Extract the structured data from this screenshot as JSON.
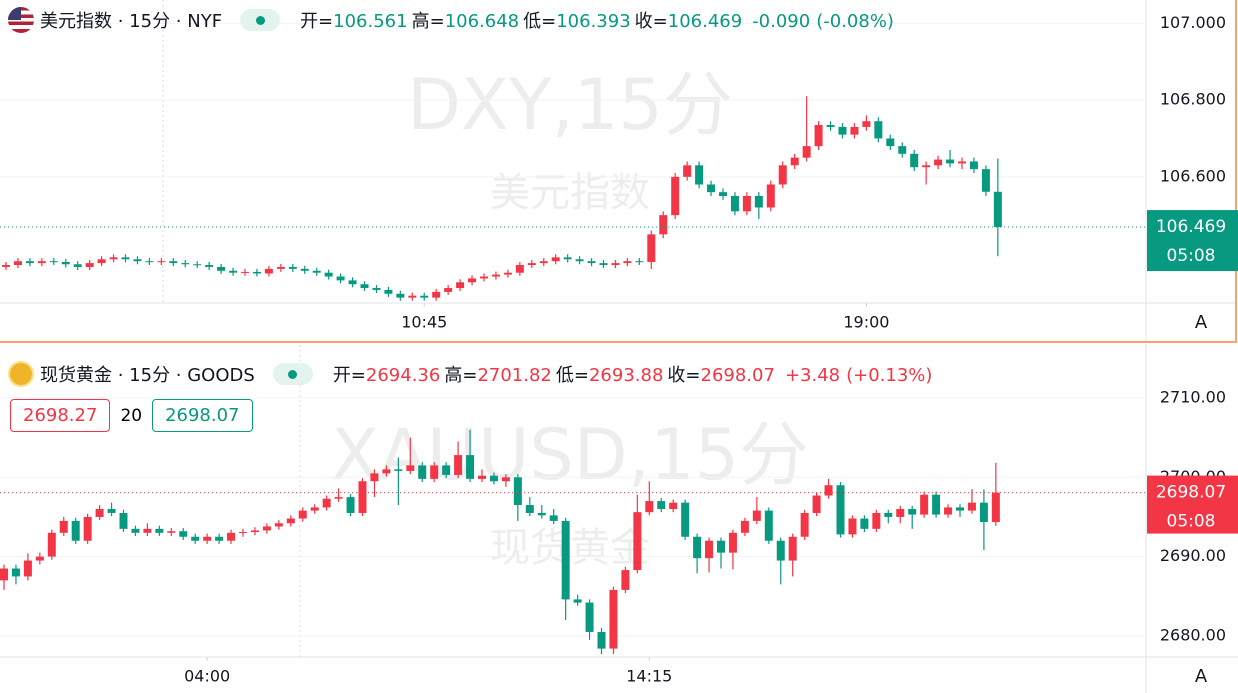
{
  "chart_data": [
    {
      "type": "candlestick",
      "title": "美元指数 · 15分 · NYF",
      "icon": "us",
      "stats": [
        {
          "label": "开=",
          "value": 106.561
        },
        {
          "label": "高=",
          "value": 106.648
        },
        {
          "label": "低=",
          "value": 106.393
        },
        {
          "label": "收=",
          "value": 106.469
        }
      ],
      "change": {
        "value": -0.09,
        "label": "-0.090"
      },
      "change_pct": {
        "value": -0.08,
        "label": "(-0.08%)"
      },
      "watermark": [
        "DXY,15分",
        "美元指数"
      ],
      "up_color": "#f23645",
      "down_color": "#089981",
      "ylim": [
        106.271,
        107.061
      ],
      "yticks": [
        {
          "value": 107,
          "label": "107.000"
        },
        {
          "value": 106.8,
          "label": "106.800"
        },
        {
          "value": 106.6,
          "label": "106.600"
        }
      ],
      "xticks": [
        {
          "value": 35,
          "label": "10:45"
        },
        {
          "value": 72,
          "label": "19:00"
        }
      ],
      "grid": true,
      "countdown": "05:08",
      "scale_button": "A",
      "candles": [
        [
          106.365,
          106.378,
          106.357,
          106.37
        ],
        [
          106.37,
          106.388,
          106.362,
          106.38
        ],
        [
          106.38,
          106.388,
          106.367,
          106.375
        ],
        [
          106.375,
          106.388,
          106.367,
          106.38
        ],
        [
          106.38,
          106.388,
          106.37,
          106.378
        ],
        [
          106.378,
          106.386,
          106.364,
          106.372
        ],
        [
          106.372,
          106.38,
          106.357,
          106.365
        ],
        [
          106.365,
          106.383,
          106.357,
          106.375
        ],
        [
          106.375,
          106.393,
          106.367,
          106.385
        ],
        [
          106.385,
          106.398,
          106.377,
          106.39
        ],
        [
          106.39,
          106.398,
          106.377,
          106.385
        ],
        [
          106.385,
          106.393,
          106.372,
          106.38
        ],
        [
          106.38,
          106.388,
          106.37,
          106.378
        ],
        [
          106.378,
          106.388,
          106.37,
          106.38
        ],
        [
          106.38,
          106.388,
          106.367,
          106.375
        ],
        [
          106.375,
          106.383,
          106.364,
          106.372
        ],
        [
          106.372,
          106.38,
          106.362,
          106.37
        ],
        [
          106.37,
          106.378,
          106.357,
          106.365
        ],
        [
          106.365,
          106.373,
          106.347,
          106.355
        ],
        [
          106.355,
          106.363,
          106.342,
          106.35
        ],
        [
          106.35,
          106.36,
          106.342,
          106.352
        ],
        [
          106.352,
          106.36,
          106.34,
          106.348
        ],
        [
          106.348,
          106.368,
          106.34,
          106.36
        ],
        [
          106.36,
          106.373,
          106.352,
          106.365
        ],
        [
          106.365,
          106.373,
          106.352,
          106.36
        ],
        [
          106.36,
          106.368,
          106.347,
          106.355
        ],
        [
          106.355,
          106.363,
          106.342,
          106.35
        ],
        [
          106.35,
          106.358,
          106.332,
          106.34
        ],
        [
          106.34,
          106.348,
          106.322,
          106.33
        ],
        [
          106.33,
          106.338,
          106.312,
          106.32
        ],
        [
          106.32,
          106.328,
          106.302,
          106.31
        ],
        [
          106.31,
          106.318,
          106.297,
          106.305
        ],
        [
          106.305,
          106.313,
          106.287,
          106.295
        ],
        [
          106.295,
          106.303,
          106.277,
          106.285
        ],
        [
          106.285,
          106.298,
          106.277,
          106.29
        ],
        [
          106.29,
          106.298,
          106.277,
          106.285
        ],
        [
          106.285,
          106.308,
          106.277,
          106.3
        ],
        [
          106.3,
          106.318,
          106.292,
          106.31
        ],
        [
          106.31,
          106.333,
          106.302,
          106.325
        ],
        [
          106.325,
          106.343,
          106.317,
          106.335
        ],
        [
          106.335,
          106.348,
          106.327,
          106.34
        ],
        [
          106.34,
          106.353,
          106.332,
          106.345
        ],
        [
          106.345,
          106.358,
          106.337,
          106.35
        ],
        [
          106.35,
          106.378,
          106.342,
          106.37
        ],
        [
          106.37,
          106.383,
          106.362,
          106.375
        ],
        [
          106.375,
          106.388,
          106.367,
          106.38
        ],
        [
          106.38,
          106.398,
          106.372,
          106.39
        ],
        [
          106.39,
          106.398,
          106.377,
          106.385
        ],
        [
          106.385,
          106.393,
          106.372,
          106.38
        ],
        [
          106.38,
          106.388,
          106.367,
          106.375
        ],
        [
          106.375,
          106.383,
          106.362,
          106.37
        ],
        [
          106.37,
          106.383,
          106.362,
          106.375
        ],
        [
          106.375,
          106.388,
          106.367,
          106.38
        ],
        [
          106.38,
          106.388,
          106.37,
          106.378
        ],
        [
          106.378,
          106.46,
          106.36,
          106.45
        ],
        [
          106.45,
          106.51,
          106.44,
          106.5
        ],
        [
          106.5,
          106.61,
          106.49,
          106.6
        ],
        [
          106.6,
          106.64,
          106.59,
          106.63
        ],
        [
          106.63,
          106.64,
          106.57,
          106.58
        ],
        [
          106.58,
          106.59,
          106.55,
          106.56
        ],
        [
          106.56,
          106.57,
          106.54,
          106.55
        ],
        [
          106.55,
          106.56,
          106.5,
          106.51
        ],
        [
          106.51,
          106.56,
          106.5,
          106.55
        ],
        [
          106.55,
          106.56,
          106.49,
          106.52
        ],
        [
          106.52,
          106.59,
          106.51,
          106.58
        ],
        [
          106.58,
          106.64,
          106.57,
          106.63
        ],
        [
          106.63,
          106.66,
          106.62,
          106.65
        ],
        [
          106.65,
          106.81,
          106.64,
          106.68
        ],
        [
          106.68,
          106.745,
          106.67,
          106.735
        ],
        [
          106.735,
          106.745,
          106.72,
          106.73
        ],
        [
          106.73,
          106.74,
          106.7,
          106.71
        ],
        [
          106.71,
          106.74,
          106.7,
          106.73
        ],
        [
          106.73,
          106.76,
          106.72,
          106.745
        ],
        [
          106.745,
          106.755,
          106.69,
          106.7
        ],
        [
          106.7,
          106.71,
          106.67,
          106.68
        ],
        [
          106.68,
          106.69,
          106.65,
          106.66
        ],
        [
          106.66,
          106.67,
          106.615,
          106.625
        ],
        [
          106.625,
          106.64,
          106.58,
          106.63
        ],
        [
          106.63,
          106.655,
          106.62,
          106.645
        ],
        [
          106.645,
          106.67,
          106.625,
          106.635
        ],
        [
          106.635,
          106.65,
          106.62,
          106.64
        ],
        [
          106.64,
          106.65,
          106.61,
          106.62
        ],
        [
          106.62,
          106.63,
          106.55,
          106.561
        ],
        [
          106.561,
          106.648,
          106.393,
          106.469
        ]
      ]
    },
    {
      "type": "candlestick",
      "title": "现货黄金 · 15分 · GOODS",
      "icon": "gold",
      "stats": [
        {
          "label": "开=",
          "value": 2694.36
        },
        {
          "label": "高=",
          "value": 2701.82
        },
        {
          "label": "低=",
          "value": 2693.88
        },
        {
          "label": "收=",
          "value": 2698.07
        }
      ],
      "change": {
        "value": 3.48,
        "label": "+3.48"
      },
      "change_pct": {
        "value": 0.13,
        "label": "(+0.13%)"
      },
      "watermark": [
        "XAUUSD,15分",
        "现货黄金"
      ],
      "quote": {
        "sell": 2698.27,
        "spread": 20,
        "buy": 2698.07
      },
      "up_color": "#f23645",
      "down_color": "#089981",
      "ylim": [
        2677.34,
        2716.68
      ],
      "yticks": [
        {
          "value": 2710,
          "label": "2710.00"
        },
        {
          "value": 2700,
          "label": "2700.00"
        },
        {
          "value": 2690,
          "label": "2690.00"
        },
        {
          "value": 2680,
          "label": "2680.00"
        }
      ],
      "xticks": [
        {
          "value": 17,
          "label": "04:00"
        },
        {
          "value": 54,
          "label": "14:15"
        }
      ],
      "grid": true,
      "countdown": "05:08",
      "scale_button": "A",
      "candles": [
        [
          2687,
          2689,
          2685.8,
          2688.5
        ],
        [
          2688.5,
          2689,
          2686.5,
          2687.5
        ],
        [
          2687.5,
          2690.4,
          2687,
          2689.5
        ],
        [
          2689.5,
          2690.5,
          2689,
          2690
        ],
        [
          2690,
          2693.4,
          2689.6,
          2693
        ],
        [
          2693,
          2695,
          2692.6,
          2694.5
        ],
        [
          2694.5,
          2694.9,
          2691.6,
          2692
        ],
        [
          2692,
          2695.4,
          2691.6,
          2695
        ],
        [
          2695,
          2696.5,
          2694.6,
          2696
        ],
        [
          2696,
          2696.8,
          2695.1,
          2695.5
        ],
        [
          2695.5,
          2695.9,
          2693.1,
          2693.5
        ],
        [
          2693.5,
          2693.9,
          2692.6,
          2693
        ],
        [
          2693,
          2694.2,
          2692.6,
          2693.5
        ],
        [
          2693.5,
          2693.9,
          2692.6,
          2693
        ],
        [
          2693,
          2693.6,
          2692.6,
          2693.2
        ],
        [
          2693.2,
          2693.6,
          2692.1,
          2692.5
        ],
        [
          2692.5,
          2692.9,
          2691.6,
          2692
        ],
        [
          2692,
          2692.9,
          2691.6,
          2692.5
        ],
        [
          2692.5,
          2692.9,
          2691.6,
          2692
        ],
        [
          2692,
          2693.4,
          2691.6,
          2693
        ],
        [
          2693,
          2693.5,
          2692.5,
          2693.1
        ],
        [
          2693.1,
          2693.7,
          2692.7,
          2693.3
        ],
        [
          2693.3,
          2694.2,
          2692.9,
          2693.8
        ],
        [
          2693.8,
          2694.6,
          2693.4,
          2694.2
        ],
        [
          2694.2,
          2695.2,
          2693.8,
          2694.8
        ],
        [
          2694.8,
          2696.2,
          2694.4,
          2695.8
        ],
        [
          2695.8,
          2696.6,
          2695.4,
          2696.2
        ],
        [
          2696.2,
          2697.7,
          2695.8,
          2697.3
        ],
        [
          2697.3,
          2698.6,
          2696.9,
          2697.5
        ],
        [
          2697.5,
          2697.9,
          2695.1,
          2695.5
        ],
        [
          2695.5,
          2699.9,
          2695.1,
          2699.5
        ],
        [
          2699.5,
          2701,
          2697.5,
          2700.5
        ],
        [
          2700.5,
          2701.5,
          2700.1,
          2701
        ],
        [
          2701,
          2702.5,
          2696.5,
          2700.8
        ],
        [
          2700.8,
          2705,
          2700.4,
          2701.5
        ],
        [
          2701.5,
          2701.9,
          2699.4,
          2699.8
        ],
        [
          2699.8,
          2701.9,
          2699.4,
          2701.5
        ],
        [
          2701.5,
          2701.9,
          2699.9,
          2700.3
        ],
        [
          2700.3,
          2704.5,
          2699.9,
          2702.8
        ],
        [
          2702.8,
          2706,
          2699.4,
          2699.8
        ],
        [
          2699.8,
          2701,
          2699.4,
          2700.2
        ],
        [
          2700.2,
          2700.6,
          2699.1,
          2699.5
        ],
        [
          2699.5,
          2700.4,
          2698.8,
          2700
        ],
        [
          2700,
          2700.4,
          2694.5,
          2696.5
        ],
        [
          2696.5,
          2697.5,
          2695.1,
          2695.5
        ],
        [
          2695.5,
          2696.5,
          2694.8,
          2695.2
        ],
        [
          2695.2,
          2696,
          2694.1,
          2694.5
        ],
        [
          2694.5,
          2694.9,
          2682,
          2684.6
        ],
        [
          2684.6,
          2685.2,
          2683.8,
          2684.2
        ],
        [
          2684.2,
          2684.6,
          2679.5,
          2680.5
        ],
        [
          2680.5,
          2681,
          2677.7,
          2678.4
        ],
        [
          2678.4,
          2686.2,
          2677.7,
          2685.8
        ],
        [
          2685.8,
          2688.7,
          2685.4,
          2688.3
        ],
        [
          2688.3,
          2697.8,
          2687.9,
          2695.6
        ],
        [
          2695.6,
          2699.5,
          2695.2,
          2697
        ],
        [
          2697,
          2697.4,
          2695.6,
          2696
        ],
        [
          2696,
          2697.2,
          2695.6,
          2696.8
        ],
        [
          2696.8,
          2697.2,
          2692.1,
          2692.5
        ],
        [
          2692.5,
          2692.9,
          2687.9,
          2689.8
        ],
        [
          2689.8,
          2692.4,
          2688,
          2692
        ],
        [
          2692,
          2692.4,
          2688.5,
          2690.5
        ],
        [
          2690.5,
          2693.4,
          2688.4,
          2693
        ],
        [
          2693,
          2694.9,
          2692.6,
          2694.5
        ],
        [
          2694.5,
          2697.5,
          2694.1,
          2695.8
        ],
        [
          2695.8,
          2696.2,
          2691.6,
          2692
        ],
        [
          2692,
          2692.4,
          2686.5,
          2689.5
        ],
        [
          2689.5,
          2692.9,
          2687.5,
          2692.5
        ],
        [
          2692.5,
          2695.9,
          2692.1,
          2695.5
        ],
        [
          2695.5,
          2698.1,
          2695.1,
          2697.7
        ],
        [
          2697.7,
          2699.8,
          2697.3,
          2699
        ],
        [
          2699,
          2699.4,
          2692.4,
          2692.8
        ],
        [
          2692.8,
          2695.2,
          2692.4,
          2694.8
        ],
        [
          2694.8,
          2695.2,
          2693.1,
          2693.5
        ],
        [
          2693.5,
          2695.9,
          2693.1,
          2695.5
        ],
        [
          2695.5,
          2695.9,
          2694.2,
          2695
        ],
        [
          2695,
          2696.4,
          2694.2,
          2696
        ],
        [
          2696,
          2696.4,
          2693.5,
          2695.3
        ],
        [
          2695.3,
          2698.2,
          2694.9,
          2697.8
        ],
        [
          2697.8,
          2698.2,
          2694.9,
          2695.3
        ],
        [
          2695.3,
          2696.6,
          2694.9,
          2696.2
        ],
        [
          2696.2,
          2696.6,
          2695,
          2695.8
        ],
        [
          2695.8,
          2698.5,
          2695.4,
          2696.8
        ],
        [
          2696.8,
          2698.5,
          2690.8,
          2694.36
        ],
        [
          2694.36,
          2701.82,
          2693.88,
          2698.07
        ]
      ]
    }
  ]
}
